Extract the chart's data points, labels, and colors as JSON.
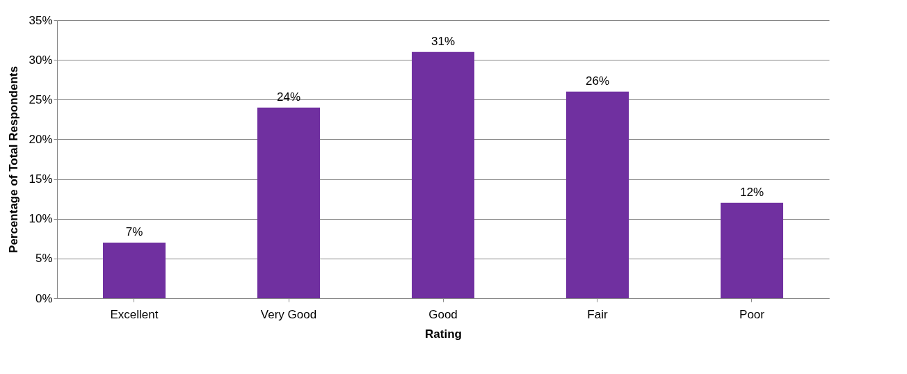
{
  "chart_data": {
    "type": "bar",
    "xlabel": "Rating",
    "ylabel": "Percentage of Total Respondents",
    "categories": [
      "Excellent",
      "Very Good",
      "Good",
      "Fair",
      "Poor"
    ],
    "values": [
      7,
      24,
      31,
      26,
      12
    ],
    "value_labels": [
      "7%",
      "24%",
      "31%",
      "26%",
      "12%"
    ],
    "color": "#7030a0",
    "ylim": [
      0,
      35
    ],
    "yticks": [
      {
        "value": 0,
        "label": "0%"
      },
      {
        "value": 5,
        "label": "5%"
      },
      {
        "value": 10,
        "label": "10%"
      },
      {
        "value": 15,
        "label": "15%"
      },
      {
        "value": 20,
        "label": "20%"
      },
      {
        "value": 25,
        "label": "25%"
      },
      {
        "value": 30,
        "label": "30%"
      },
      {
        "value": 35,
        "label": "35%"
      }
    ],
    "grid": "y"
  }
}
